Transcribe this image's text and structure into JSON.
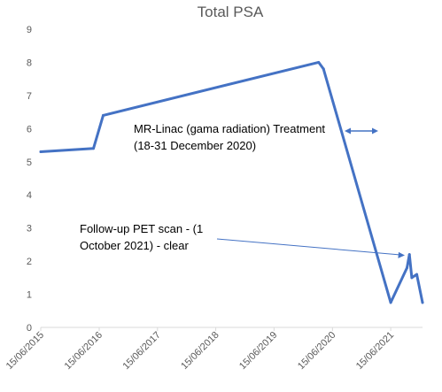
{
  "chart_data": {
    "type": "line",
    "title": "Total PSA",
    "xlabel": "",
    "ylabel": "",
    "ylim": [
      0,
      9
    ],
    "xlim": [
      "2015-06-15",
      "2021-12-31"
    ],
    "yticks": [
      "0",
      "1",
      "2",
      "3",
      "4",
      "5",
      "6",
      "7",
      "8",
      "9"
    ],
    "xticks": [
      {
        "label": "15/06/2015",
        "date": "2015-06-15"
      },
      {
        "label": "15/06/2016",
        "date": "2016-06-15"
      },
      {
        "label": "15/06/2017",
        "date": "2017-06-15"
      },
      {
        "label": "15/06/2018",
        "date": "2018-06-15"
      },
      {
        "label": "15/06/2019",
        "date": "2019-06-15"
      },
      {
        "label": "15/06/2020",
        "date": "2020-06-15"
      },
      {
        "label": "15/06/2021",
        "date": "2021-06-15"
      }
    ],
    "grid": false,
    "series": [
      {
        "color": "#4472c4",
        "points": [
          {
            "x": "2015-06-15",
            "y": 5.3
          },
          {
            "x": "2016-05-10",
            "y": 5.4
          },
          {
            "x": "2016-07-10",
            "y": 6.4
          },
          {
            "x": "2020-03-20",
            "y": 8.0
          },
          {
            "x": "2020-04-20",
            "y": 7.8
          },
          {
            "x": "2021-06-15",
            "y": 0.75
          },
          {
            "x": "2021-09-25",
            "y": 1.8
          },
          {
            "x": "2021-10-10",
            "y": 2.2
          },
          {
            "x": "2021-10-25",
            "y": 1.5
          },
          {
            "x": "2021-11-25",
            "y": 1.6
          },
          {
            "x": "2021-12-31",
            "y": 0.75
          }
        ]
      }
    ],
    "annotations": [
      {
        "lines": [
          "MR-Linac (gama radiation) Treatment",
          "(18-31 December 2020)"
        ]
      },
      {
        "lines": [
          "Follow-up PET scan - (1",
          "October 2021) - clear"
        ]
      }
    ]
  }
}
